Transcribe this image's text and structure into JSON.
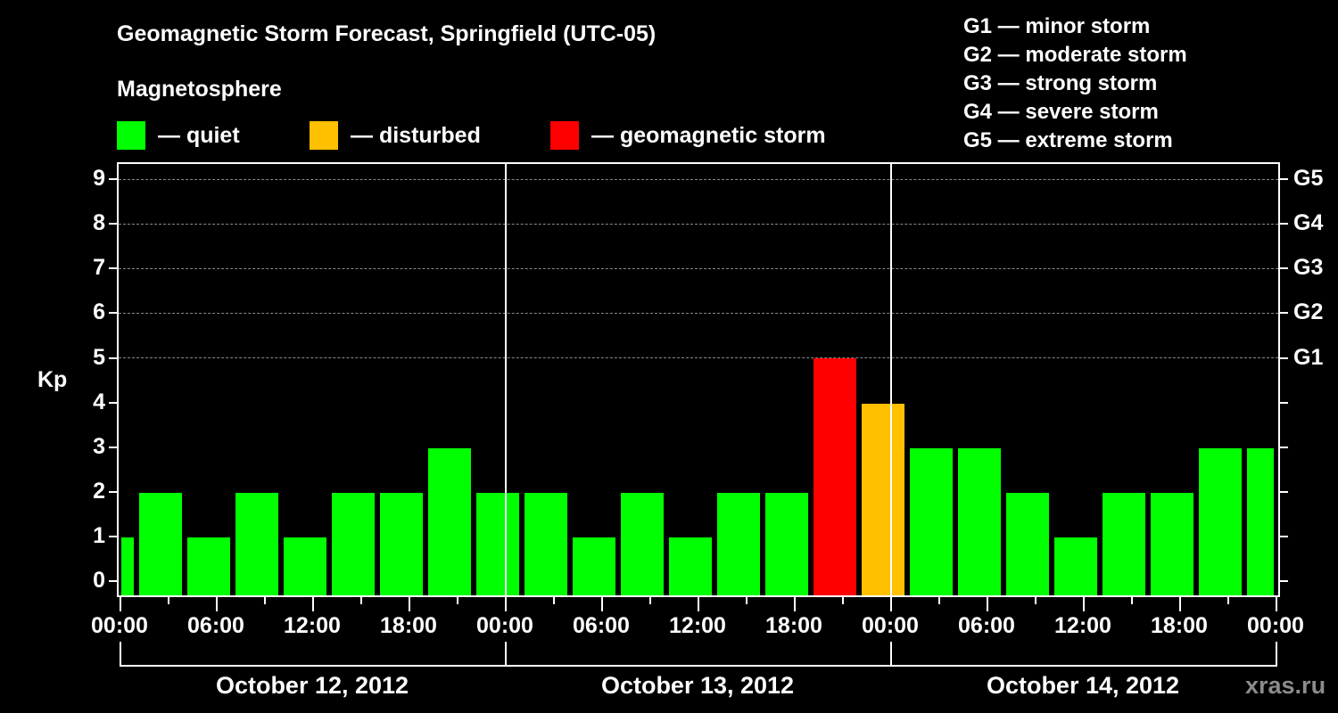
{
  "header": {
    "title": "Geomagnetic Storm Forecast, Springfield (UTC-05)",
    "subtitle": "Magnetosphere"
  },
  "legend": [
    {
      "label": "— quiet",
      "color": "#00ff00"
    },
    {
      "label": "— disturbed",
      "color": "#ffc000"
    },
    {
      "label": "— geomagnetic storm",
      "color": "#ff0000"
    }
  ],
  "g_scale": [
    "G1 — minor storm",
    "G2 — moderate storm",
    "G3 — strong storm",
    "G4 — severe storm",
    "G5 — extreme storm"
  ],
  "axes": {
    "ylabel": "Kp",
    "yticks": [
      "0",
      "1",
      "2",
      "3",
      "4",
      "5",
      "6",
      "7",
      "8",
      "9"
    ],
    "right_ticks": [
      "G1",
      "G2",
      "G3",
      "G4",
      "G5"
    ],
    "xticks": [
      "00:00",
      "06:00",
      "12:00",
      "18:00",
      "00:00",
      "06:00",
      "12:00",
      "18:00",
      "00:00",
      "06:00",
      "12:00",
      "18:00",
      "00:00"
    ],
    "days": [
      "October 12, 2012",
      "October 13, 2012",
      "October 14, 2012"
    ]
  },
  "watermark": "xras.ru",
  "chart_data": {
    "type": "bar",
    "title": "Geomagnetic Storm Forecast, Springfield (UTC-05)",
    "subtitle": "Magnetosphere",
    "xlabel": "",
    "ylabel": "Kp",
    "ylim": [
      0,
      9
    ],
    "grid": "dashed horizontal at Kp 5-9",
    "legend_position": "top",
    "secondary_axis": {
      "G1": 5,
      "G2": 6,
      "G3": 7,
      "G4": 8,
      "G5": 9
    },
    "categories": [
      "Oct 12 00:00",
      "Oct 12 03:00",
      "Oct 12 06:00",
      "Oct 12 09:00",
      "Oct 12 12:00",
      "Oct 12 15:00",
      "Oct 12 18:00",
      "Oct 12 21:00",
      "Oct 13 00:00",
      "Oct 13 03:00",
      "Oct 13 06:00",
      "Oct 13 09:00",
      "Oct 13 12:00",
      "Oct 13 15:00",
      "Oct 13 18:00",
      "Oct 13 21:00",
      "Oct 14 00:00",
      "Oct 14 03:00",
      "Oct 14 06:00",
      "Oct 14 09:00",
      "Oct 14 12:00",
      "Oct 14 15:00",
      "Oct 14 18:00",
      "Oct 14 21:00",
      "Oct 15 00:00"
    ],
    "values": [
      1,
      2,
      1,
      2,
      1,
      2,
      2,
      3,
      2,
      2,
      1,
      2,
      1,
      2,
      2,
      5,
      4,
      3,
      3,
      2,
      1,
      2,
      2,
      3,
      3
    ],
    "status": [
      "quiet",
      "quiet",
      "quiet",
      "quiet",
      "quiet",
      "quiet",
      "quiet",
      "quiet",
      "quiet",
      "quiet",
      "quiet",
      "quiet",
      "quiet",
      "quiet",
      "quiet",
      "storm",
      "disturbed",
      "quiet",
      "quiet",
      "quiet",
      "quiet",
      "quiet",
      "quiet",
      "quiet",
      "quiet"
    ],
    "colors": {
      "quiet": "#00ff00",
      "disturbed": "#ffc000",
      "storm": "#ff0000"
    }
  }
}
